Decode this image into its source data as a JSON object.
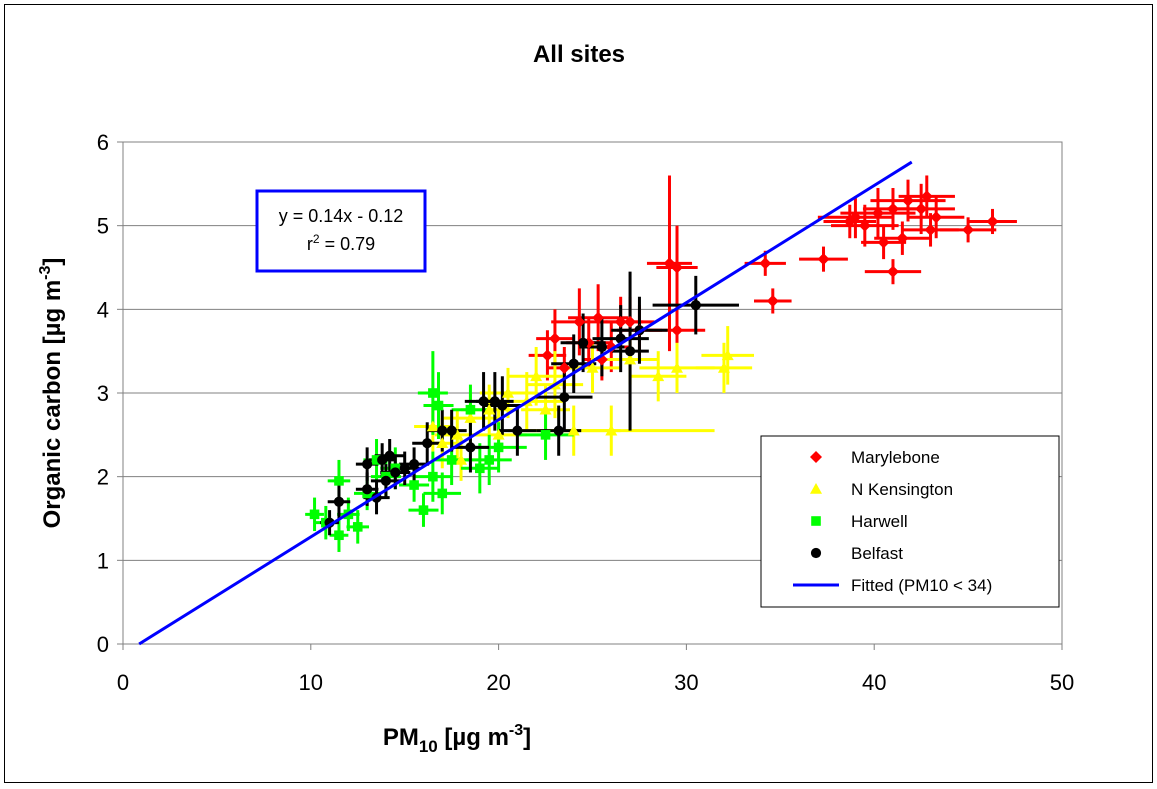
{
  "chart_data": {
    "type": "scatter",
    "title": "All sites",
    "xlabel": {
      "main": "PM",
      "sub": "10",
      "tail": " [µg m",
      "sup": "-3",
      "end": "]"
    },
    "ylabel": {
      "main": "Organic carbon [µg m",
      "sup": "-3",
      "end": "]"
    },
    "xlim": [
      0,
      50
    ],
    "ylim": [
      0,
      6
    ],
    "x_ticks": [
      "0",
      "10",
      "20",
      "30",
      "40",
      "50"
    ],
    "y_ticks": [
      "0",
      "1",
      "2",
      "3",
      "4",
      "5",
      "6"
    ],
    "grid": true,
    "legend_position": "bottom-right",
    "equation": {
      "line1": "y = 0.14x - 0.12",
      "r_label": "r",
      "r_sup": "2",
      "r_value": " = 0.79"
    },
    "fit": {
      "name": "Fitted (PM10 < 34)",
      "slope": 0.14,
      "intercept": -0.12,
      "x_range": [
        0.86,
        42.0
      ],
      "color": "#0000ff"
    },
    "series": [
      {
        "name": "Marylebone",
        "marker": "diamond",
        "color": "#ff0000",
        "points": [
          {
            "x": 29.1,
            "y": 4.55,
            "xerr": 1.2,
            "yerr": 1.05
          },
          {
            "x": 29.5,
            "y": 4.5,
            "xerr": 1.1,
            "yerr": 0.5
          },
          {
            "x": 34.2,
            "y": 4.55,
            "xerr": 1.1,
            "yerr": 0.15
          },
          {
            "x": 34.6,
            "y": 4.1,
            "xerr": 1.0,
            "yerr": 0.15
          },
          {
            "x": 37.3,
            "y": 4.6,
            "xerr": 1.3,
            "yerr": 0.15
          },
          {
            "x": 41.0,
            "y": 4.45,
            "xerr": 1.5,
            "yerr": 0.15
          },
          {
            "x": 40.5,
            "y": 4.8,
            "xerr": 1.2,
            "yerr": 0.2
          },
          {
            "x": 41.5,
            "y": 4.85,
            "xerr": 1.5,
            "yerr": 0.2
          },
          {
            "x": 39.0,
            "y": 5.1,
            "xerr": 2.0,
            "yerr": 0.25
          },
          {
            "x": 39.5,
            "y": 5.0,
            "xerr": 1.8,
            "yerr": 0.25
          },
          {
            "x": 40.2,
            "y": 5.15,
            "xerr": 2.0,
            "yerr": 0.3
          },
          {
            "x": 41.0,
            "y": 5.2,
            "xerr": 1.6,
            "yerr": 0.25
          },
          {
            "x": 41.8,
            "y": 5.3,
            "xerr": 2.0,
            "yerr": 0.25
          },
          {
            "x": 42.5,
            "y": 5.2,
            "xerr": 1.8,
            "yerr": 0.3
          },
          {
            "x": 42.8,
            "y": 5.35,
            "xerr": 1.5,
            "yerr": 0.25
          },
          {
            "x": 43.3,
            "y": 5.1,
            "xerr": 1.5,
            "yerr": 0.25
          },
          {
            "x": 43.0,
            "y": 4.95,
            "xerr": 1.5,
            "yerr": 0.2
          },
          {
            "x": 45.0,
            "y": 4.95,
            "xerr": 1.5,
            "yerr": 0.15
          },
          {
            "x": 46.3,
            "y": 5.05,
            "xerr": 1.3,
            "yerr": 0.15
          },
          {
            "x": 38.7,
            "y": 5.05,
            "xerr": 1.4,
            "yerr": 0.2
          },
          {
            "x": 24.3,
            "y": 3.85,
            "xerr": 1.5,
            "yerr": 0.4
          },
          {
            "x": 25.3,
            "y": 3.9,
            "xerr": 1.6,
            "yerr": 0.4
          },
          {
            "x": 26.5,
            "y": 3.85,
            "xerr": 1.2,
            "yerr": 0.3
          },
          {
            "x": 27.0,
            "y": 3.85,
            "xerr": 1.3,
            "yerr": 0.3
          },
          {
            "x": 23.0,
            "y": 3.65,
            "xerr": 1.0,
            "yerr": 0.35
          },
          {
            "x": 22.6,
            "y": 3.45,
            "xerr": 1.0,
            "yerr": 0.3
          },
          {
            "x": 25.5,
            "y": 3.4,
            "xerr": 1.0,
            "yerr": 0.25
          },
          {
            "x": 27.5,
            "y": 3.75,
            "xerr": 1.2,
            "yerr": 0.3
          },
          {
            "x": 29.5,
            "y": 3.75,
            "xerr": 1.5,
            "yerr": 0.3
          },
          {
            "x": 24.8,
            "y": 3.6,
            "xerr": 1.2,
            "yerr": 0.3
          },
          {
            "x": 26.0,
            "y": 3.55,
            "xerr": 1.0,
            "yerr": 0.3
          },
          {
            "x": 23.5,
            "y": 3.3,
            "xerr": 0.9,
            "yerr": 0.25
          }
        ]
      },
      {
        "name": "N Kensington",
        "marker": "triangle",
        "color": "#ffff00",
        "points": [
          {
            "x": 32.0,
            "y": 3.3,
            "xerr": 1.5,
            "yerr": 0.3
          },
          {
            "x": 32.2,
            "y": 3.45,
            "xerr": 1.4,
            "yerr": 0.35
          },
          {
            "x": 29.5,
            "y": 3.3,
            "xerr": 2.0,
            "yerr": 0.3
          },
          {
            "x": 28.5,
            "y": 3.2,
            "xerr": 1.5,
            "yerr": 0.3
          },
          {
            "x": 26.0,
            "y": 2.55,
            "xerr": 5.5,
            "yerr": 0.3
          },
          {
            "x": 24.0,
            "y": 2.55,
            "xerr": 2.5,
            "yerr": 0.3
          },
          {
            "x": 23.0,
            "y": 3.1,
            "xerr": 1.5,
            "yerr": 0.4
          },
          {
            "x": 22.0,
            "y": 3.2,
            "xerr": 1.5,
            "yerr": 0.35
          },
          {
            "x": 21.5,
            "y": 2.9,
            "xerr": 2.0,
            "yerr": 0.35
          },
          {
            "x": 20.5,
            "y": 3.0,
            "xerr": 1.5,
            "yerr": 0.3
          },
          {
            "x": 19.5,
            "y": 2.8,
            "xerr": 1.5,
            "yerr": 0.3
          },
          {
            "x": 18.5,
            "y": 2.7,
            "xerr": 1.5,
            "yerr": 0.3
          },
          {
            "x": 17.8,
            "y": 2.5,
            "xerr": 1.2,
            "yerr": 0.3
          },
          {
            "x": 17.0,
            "y": 2.4,
            "xerr": 1.0,
            "yerr": 0.3
          },
          {
            "x": 16.5,
            "y": 2.6,
            "xerr": 1.0,
            "yerr": 0.3
          },
          {
            "x": 20.0,
            "y": 2.5,
            "xerr": 1.5,
            "yerr": 0.3
          },
          {
            "x": 25.0,
            "y": 3.3,
            "xerr": 1.5,
            "yerr": 0.3
          },
          {
            "x": 27.0,
            "y": 3.4,
            "xerr": 1.5,
            "yerr": 0.3
          },
          {
            "x": 22.5,
            "y": 2.8,
            "xerr": 1.3,
            "yerr": 0.3
          },
          {
            "x": 18.0,
            "y": 2.2,
            "xerr": 1.2,
            "yerr": 0.25
          }
        ]
      },
      {
        "name": "Harwell",
        "marker": "square",
        "color": "#00ff00",
        "points": [
          {
            "x": 10.2,
            "y": 1.55,
            "xerr": 0.5,
            "yerr": 0.2
          },
          {
            "x": 10.8,
            "y": 1.45,
            "xerr": 0.6,
            "yerr": 0.2
          },
          {
            "x": 11.5,
            "y": 1.3,
            "xerr": 0.5,
            "yerr": 0.2
          },
          {
            "x": 11.5,
            "y": 1.95,
            "xerr": 0.6,
            "yerr": 0.25
          },
          {
            "x": 12.5,
            "y": 1.4,
            "xerr": 0.6,
            "yerr": 0.2
          },
          {
            "x": 12.0,
            "y": 1.55,
            "xerr": 0.6,
            "yerr": 0.2
          },
          {
            "x": 13.0,
            "y": 1.8,
            "xerr": 0.7,
            "yerr": 0.2
          },
          {
            "x": 14.0,
            "y": 2.0,
            "xerr": 0.8,
            "yerr": 0.25
          },
          {
            "x": 14.5,
            "y": 2.1,
            "xerr": 0.8,
            "yerr": 0.25
          },
          {
            "x": 15.5,
            "y": 1.9,
            "xerr": 0.8,
            "yerr": 0.2
          },
          {
            "x": 16.0,
            "y": 1.6,
            "xerr": 0.8,
            "yerr": 0.2
          },
          {
            "x": 16.5,
            "y": 2.0,
            "xerr": 1.0,
            "yerr": 0.3
          },
          {
            "x": 17.0,
            "y": 1.8,
            "xerr": 1.0,
            "yerr": 0.25
          },
          {
            "x": 16.8,
            "y": 2.85,
            "xerr": 0.8,
            "yerr": 0.4
          },
          {
            "x": 16.5,
            "y": 3.0,
            "xerr": 0.8,
            "yerr": 0.5
          },
          {
            "x": 18.5,
            "y": 2.8,
            "xerr": 1.0,
            "yerr": 0.3
          },
          {
            "x": 19.0,
            "y": 2.1,
            "xerr": 1.0,
            "yerr": 0.3
          },
          {
            "x": 19.5,
            "y": 2.2,
            "xerr": 1.2,
            "yerr": 0.3
          },
          {
            "x": 20.0,
            "y": 2.35,
            "xerr": 1.5,
            "yerr": 0.3
          },
          {
            "x": 22.5,
            "y": 2.5,
            "xerr": 1.5,
            "yerr": 0.3
          },
          {
            "x": 17.5,
            "y": 2.2,
            "xerr": 1.0,
            "yerr": 0.3
          },
          {
            "x": 13.5,
            "y": 2.2,
            "xerr": 0.7,
            "yerr": 0.25
          }
        ]
      },
      {
        "name": "Belfast",
        "marker": "circle",
        "color": "#000000",
        "points": [
          {
            "x": 11.0,
            "y": 1.45,
            "xerr": 0.5,
            "yerr": 0.15
          },
          {
            "x": 11.5,
            "y": 1.7,
            "xerr": 0.6,
            "yerr": 0.2
          },
          {
            "x": 13.0,
            "y": 1.85,
            "xerr": 0.6,
            "yerr": 0.2
          },
          {
            "x": 13.5,
            "y": 1.75,
            "xerr": 0.7,
            "yerr": 0.2
          },
          {
            "x": 13.0,
            "y": 2.15,
            "xerr": 0.6,
            "yerr": 0.2
          },
          {
            "x": 13.8,
            "y": 2.2,
            "xerr": 0.7,
            "yerr": 0.2
          },
          {
            "x": 14.2,
            "y": 2.25,
            "xerr": 0.8,
            "yerr": 0.2
          },
          {
            "x": 14.5,
            "y": 2.05,
            "xerr": 0.8,
            "yerr": 0.2
          },
          {
            "x": 15.0,
            "y": 2.1,
            "xerr": 0.8,
            "yerr": 0.2
          },
          {
            "x": 14.0,
            "y": 1.95,
            "xerr": 0.8,
            "yerr": 0.2
          },
          {
            "x": 15.5,
            "y": 2.15,
            "xerr": 0.8,
            "yerr": 0.2
          },
          {
            "x": 16.2,
            "y": 2.4,
            "xerr": 0.8,
            "yerr": 0.25
          },
          {
            "x": 17.0,
            "y": 2.55,
            "xerr": 0.8,
            "yerr": 0.25
          },
          {
            "x": 17.5,
            "y": 2.55,
            "xerr": 0.8,
            "yerr": 0.25
          },
          {
            "x": 18.5,
            "y": 2.35,
            "xerr": 1.0,
            "yerr": 0.3
          },
          {
            "x": 19.2,
            "y": 2.9,
            "xerr": 1.0,
            "yerr": 0.35
          },
          {
            "x": 19.8,
            "y": 2.9,
            "xerr": 1.0,
            "yerr": 0.35
          },
          {
            "x": 20.2,
            "y": 2.85,
            "xerr": 1.0,
            "yerr": 0.35
          },
          {
            "x": 21.0,
            "y": 2.55,
            "xerr": 1.0,
            "yerr": 0.3
          },
          {
            "x": 23.2,
            "y": 2.55,
            "xerr": 1.2,
            "yerr": 0.3
          },
          {
            "x": 23.5,
            "y": 2.95,
            "xerr": 1.5,
            "yerr": 0.4
          },
          {
            "x": 24.0,
            "y": 3.35,
            "xerr": 1.2,
            "yerr": 0.35
          },
          {
            "x": 24.5,
            "y": 3.6,
            "xerr": 1.2,
            "yerr": 0.35
          },
          {
            "x": 25.5,
            "y": 3.55,
            "xerr": 1.2,
            "yerr": 0.35
          },
          {
            "x": 26.5,
            "y": 3.65,
            "xerr": 1.5,
            "yerr": 0.4
          },
          {
            "x": 27.5,
            "y": 3.75,
            "xerr": 1.5,
            "yerr": 0.4
          },
          {
            "x": 30.5,
            "y": 4.05,
            "xerr": 2.3,
            "yerr": 0.35
          },
          {
            "x": 27.0,
            "y": 3.5,
            "xerr": 1.0,
            "yerr": 0.95
          }
        ]
      }
    ]
  }
}
